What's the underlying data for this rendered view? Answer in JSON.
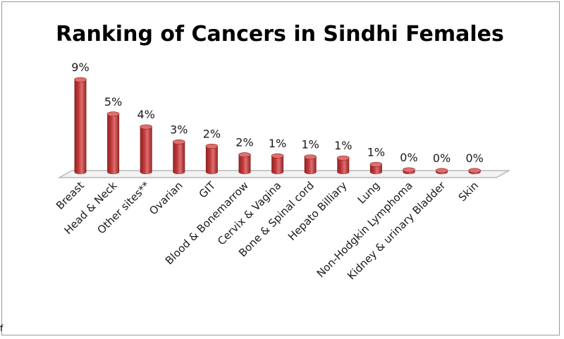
{
  "chart_data": {
    "type": "bar",
    "title": "Ranking of Cancers in Sindhi Females",
    "categories": [
      "Breast",
      "Head & Neck",
      "Other sites**",
      "Ovarian",
      "GIT",
      "Blood & Bonemarrow",
      "Cervix & Vagina",
      "Bone & Spinal cord",
      "Hepato Billiary",
      "Lung",
      "Non-Hodgkin Lymphoma",
      "Kidney & urinary Bladder",
      "Skin"
    ],
    "values": [
      8.6,
      5.4,
      4.2,
      2.8,
      2.4,
      1.6,
      1.5,
      1.4,
      1.3,
      0.7,
      0.2,
      0.1,
      0.1
    ],
    "labels": [
      "9%",
      "5%",
      "4%",
      "3%",
      "2%",
      "2%",
      "1%",
      "1%",
      "1%",
      "1%",
      "0%",
      "0%",
      "0%"
    ],
    "xlabel": "",
    "ylabel": "",
    "ylim": [
      0,
      9
    ],
    "grid": false,
    "legend": "none",
    "bar_style": "3d-cylinder",
    "colors": {
      "bar": "#c0393a",
      "bar_dark": "#8e2223",
      "bar_light": "#e06e6e",
      "floor": "#f2f2f2",
      "floor_edge": "#9a9a9a"
    }
  },
  "stray_mark": "f"
}
